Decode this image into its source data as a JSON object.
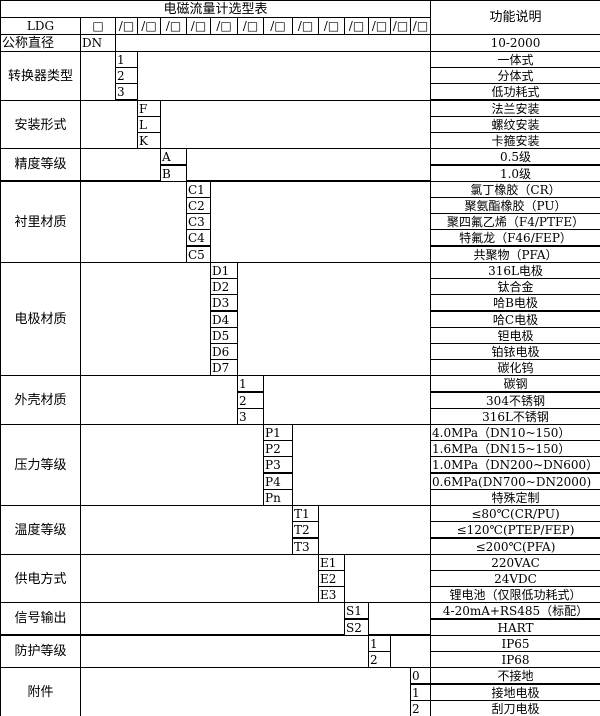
{
  "title": "电磁流量计选型表",
  "function_header": "功能说明",
  "header_row": {
    "model": "LDG",
    "first_slot": "□",
    "slot": "/□",
    "slot_count": 13
  },
  "nominal": {
    "label": "公称直径",
    "code": "DN",
    "desc": "10-2000"
  },
  "groups": [
    {
      "label": "转换器类型",
      "rows": [
        {
          "code": "1",
          "desc": "一体式"
        },
        {
          "code": "2",
          "desc": "分体式"
        },
        {
          "code": "3",
          "desc": "低功耗式"
        }
      ]
    },
    {
      "label": "安装形式",
      "rows": [
        {
          "code": "F",
          "desc": "法兰安装"
        },
        {
          "code": "L",
          "desc": "螺纹安装"
        },
        {
          "code": "K",
          "desc": "卡箍安装"
        }
      ]
    },
    {
      "label": "精度等级",
      "rows": [
        {
          "code": "A",
          "desc": "0.5级"
        },
        {
          "code": "B",
          "desc": "1.0级"
        }
      ]
    },
    {
      "label": "衬里材质",
      "rows": [
        {
          "code": "C1",
          "desc": "氯丁橡胶（CR）"
        },
        {
          "code": "C2",
          "desc": "聚氨酯橡胶（PU）"
        },
        {
          "code": "C3",
          "desc": "聚四氟乙烯（F4/PTFE）"
        },
        {
          "code": "C4",
          "desc": "特氟龙（F46/FEP）"
        },
        {
          "code": "C5",
          "desc": "共聚物（PFA）"
        }
      ]
    },
    {
      "label": "电极材质",
      "rows": [
        {
          "code": "D1",
          "desc": "316L电极"
        },
        {
          "code": "D2",
          "desc": "钛合金"
        },
        {
          "code": "D3",
          "desc": "哈B电极"
        },
        {
          "code": "D4",
          "desc": "哈C电极"
        },
        {
          "code": "D5",
          "desc": "钽电极"
        },
        {
          "code": "D6",
          "desc": "铂铱电极"
        },
        {
          "code": "D7",
          "desc": "碳化钨"
        }
      ]
    },
    {
      "label": "外壳材质",
      "rows": [
        {
          "code": "1",
          "desc": "碳钢"
        },
        {
          "code": "2",
          "desc": "304不锈钢"
        },
        {
          "code": "3",
          "desc": "316L不锈钢"
        }
      ]
    },
    {
      "label": "压力等级",
      "left": true,
      "rows": [
        {
          "code": "P1",
          "desc": "4.0MPa（DN10~150）"
        },
        {
          "code": "P2",
          "desc": "1.6MPa（DN15~150）"
        },
        {
          "code": "P3",
          "desc": "1.0MPa（DN200~DN600）"
        },
        {
          "code": "P4",
          "desc": "0.6MPa(DN700~DN2000)"
        },
        {
          "code": "Pn",
          "desc": "特殊定制",
          "center": true
        }
      ]
    },
    {
      "label": "温度等级",
      "rows": [
        {
          "code": "T1",
          "desc": "≤80℃(CR/PU)"
        },
        {
          "code": "T2",
          "desc": "≤120℃(PTEP/FEP)"
        },
        {
          "code": "T3",
          "desc": "≤200℃(PFA)"
        }
      ]
    },
    {
      "label": "供电方式",
      "rows": [
        {
          "code": "E1",
          "desc": "220VAC"
        },
        {
          "code": "E2",
          "desc": "24VDC"
        },
        {
          "code": "E3",
          "desc": "锂电池（仅限低功耗式）"
        }
      ]
    },
    {
      "label": "信号输出",
      "rows": [
        {
          "code": "S1",
          "desc": "4-20mA+RS485（标配）"
        },
        {
          "code": "S2",
          "desc": "HART"
        }
      ]
    },
    {
      "label": "防护等级",
      "rows": [
        {
          "code": "1",
          "desc": "IP65"
        },
        {
          "code": "2",
          "desc": "IP68"
        }
      ]
    },
    {
      "label": "附件",
      "rows": [
        {
          "code": "0",
          "desc": "不接地"
        },
        {
          "code": "1",
          "desc": "接地电极"
        },
        {
          "code": "2",
          "desc": "刮刀电极"
        }
      ]
    }
  ]
}
